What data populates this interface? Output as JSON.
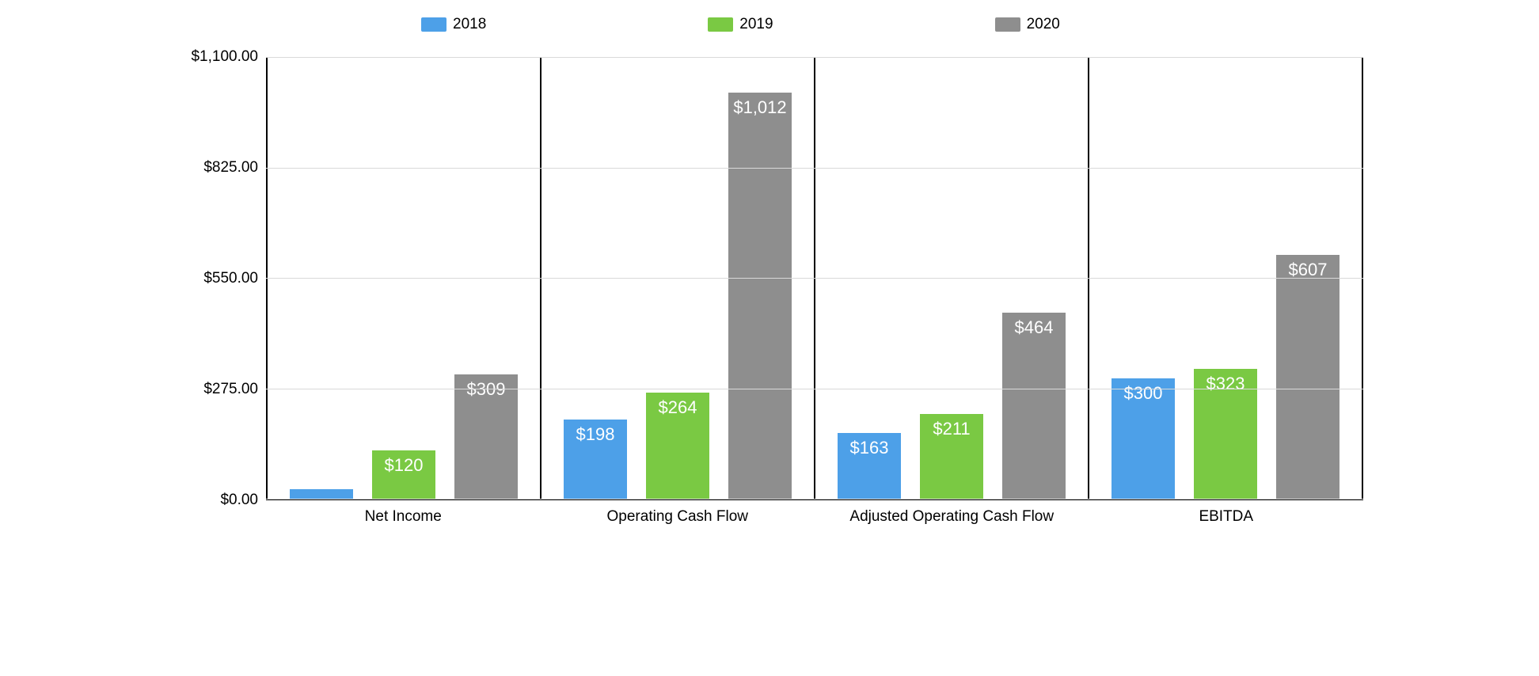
{
  "chart": {
    "type": "bar",
    "background_color": "#ffffff",
    "text_color": "#000000",
    "grid_color": "#d9d9d9",
    "axis_line_color": "#000000",
    "label_fontsize": 19,
    "bar_label_fontsize": 22,
    "bar_label_color": "#ffffff",
    "ylim": [
      0,
      1100
    ],
    "yticks": [
      {
        "value": 0,
        "label": "$0.00"
      },
      {
        "value": 275,
        "label": "$275.00"
      },
      {
        "value": 550,
        "label": "$550.00"
      },
      {
        "value": 825,
        "label": "$825.00"
      },
      {
        "value": 1100,
        "label": "$1,100.00"
      }
    ],
    "series": [
      {
        "name": "2018",
        "color": "#4da0e8"
      },
      {
        "name": "2019",
        "color": "#7ac943"
      },
      {
        "name": "2020",
        "color": "#8e8e8e"
      }
    ],
    "categories": [
      {
        "label": "Net Income",
        "bars": [
          {
            "series": "2018",
            "value": 23,
            "label": ""
          },
          {
            "series": "2019",
            "value": 120,
            "label": "$120"
          },
          {
            "series": "2020",
            "value": 309,
            "label": "$309"
          }
        ]
      },
      {
        "label": "Operating Cash Flow",
        "bars": [
          {
            "series": "2018",
            "value": 198,
            "label": "$198"
          },
          {
            "series": "2019",
            "value": 264,
            "label": "$264"
          },
          {
            "series": "2020",
            "value": 1012,
            "label": "$1,012"
          }
        ]
      },
      {
        "label": "Adjusted Operating Cash Flow",
        "bars": [
          {
            "series": "2018",
            "value": 163,
            "label": "$163"
          },
          {
            "series": "2019",
            "value": 211,
            "label": "$211"
          },
          {
            "series": "2020",
            "value": 464,
            "label": "$464"
          }
        ]
      },
      {
        "label": "EBITDA",
        "bars": [
          {
            "series": "2018",
            "value": 300,
            "label": "$300"
          },
          {
            "series": "2019",
            "value": 323,
            "label": "$323"
          },
          {
            "series": "2020",
            "value": 607,
            "label": "$607"
          }
        ]
      }
    ]
  }
}
